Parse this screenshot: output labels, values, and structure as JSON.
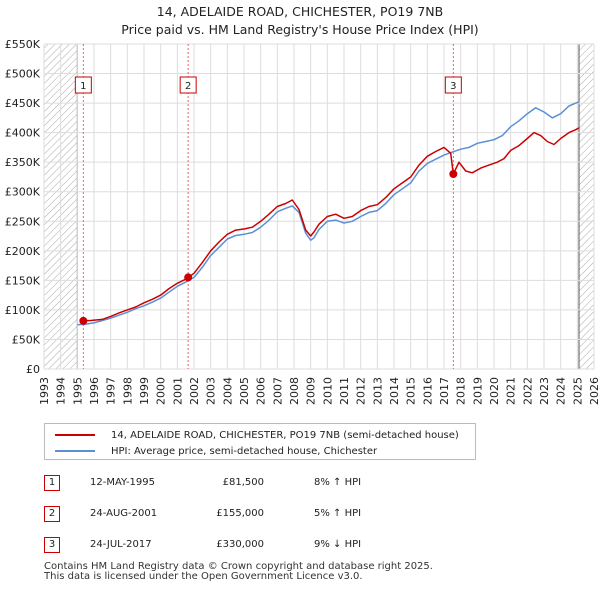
{
  "title": "14, ADELAIDE ROAD, CHICHESTER, PO19 7NB",
  "subtitle": "Price paid vs. HM Land Registry's House Price Index (HPI)",
  "chart_data": {
    "type": "line",
    "title": "14, ADELAIDE ROAD, CHICHESTER, PO19 7NB",
    "subtitle": "Price paid vs. HM Land Registry's House Price Index (HPI)",
    "xlabel": "",
    "ylabel": "",
    "xlim": [
      1993,
      2026
    ],
    "ylim": [
      0,
      550000
    ],
    "grid": true,
    "x_ticks": [
      "1993",
      "1994",
      "1995",
      "1996",
      "1997",
      "1998",
      "1999",
      "2000",
      "2001",
      "2002",
      "2003",
      "2004",
      "2005",
      "2006",
      "2007",
      "2008",
      "2009",
      "2010",
      "2011",
      "2012",
      "2013",
      "2014",
      "2015",
      "2016",
      "2017",
      "2018",
      "2019",
      "2020",
      "2021",
      "2022",
      "2023",
      "2024",
      "2025",
      "2026"
    ],
    "y_ticks": [
      {
        "value": 0,
        "label": "£0"
      },
      {
        "value": 50000,
        "label": "£50K"
      },
      {
        "value": 100000,
        "label": "£100K"
      },
      {
        "value": 150000,
        "label": "£150K"
      },
      {
        "value": 200000,
        "label": "£200K"
      },
      {
        "value": 250000,
        "label": "£250K"
      },
      {
        "value": 300000,
        "label": "£300K"
      },
      {
        "value": 350000,
        "label": "£350K"
      },
      {
        "value": 400000,
        "label": "£400K"
      },
      {
        "value": 450000,
        "label": "£450K"
      },
      {
        "value": 500000,
        "label": "£500K"
      },
      {
        "value": 550000,
        "label": "£550K"
      }
    ],
    "hatched_regions": [
      [
        1993,
        1995.0
      ],
      [
        2025.1,
        2026
      ]
    ],
    "series": [
      {
        "name": "14, ADELAIDE ROAD, CHICHESTER, PO19 7NB (semi-detached house)",
        "color": "#cc0000",
        "x": [
          1995.36,
          1995.8,
          1996.5,
          1997.0,
          1997.5,
          1998.0,
          1998.5,
          1999.0,
          1999.5,
          2000.0,
          2000.5,
          2001.0,
          2001.5,
          2001.65,
          2002.0,
          2002.5,
          2003.0,
          2003.5,
          2004.0,
          2004.5,
          2005.0,
          2005.5,
          2006.0,
          2006.5,
          2007.0,
          2007.5,
          2007.9,
          2008.3,
          2008.7,
          2009.0,
          2009.2,
          2009.5,
          2010.0,
          2010.5,
          2011.0,
          2011.5,
          2012.0,
          2012.5,
          2013.0,
          2013.5,
          2014.0,
          2014.5,
          2015.0,
          2015.5,
          2016.0,
          2016.5,
          2017.0,
          2017.4,
          2017.56,
          2017.9,
          2018.3,
          2018.7,
          2019.2,
          2019.7,
          2020.2,
          2020.6,
          2021.0,
          2021.5,
          2022.0,
          2022.4,
          2022.8,
          2023.2,
          2023.6,
          2024.0,
          2024.5,
          2024.9,
          2025.1
        ],
        "values": [
          81500,
          82000,
          84000,
          89000,
          95000,
          100000,
          105000,
          112000,
          118000,
          125000,
          136000,
          145000,
          152000,
          155000,
          162000,
          180000,
          200000,
          215000,
          228000,
          235000,
          237000,
          240000,
          250000,
          262000,
          275000,
          280000,
          286000,
          270000,
          235000,
          225000,
          232000,
          245000,
          258000,
          262000,
          255000,
          258000,
          268000,
          275000,
          278000,
          290000,
          305000,
          315000,
          325000,
          345000,
          360000,
          368000,
          375000,
          365000,
          330000,
          350000,
          335000,
          332000,
          340000,
          345000,
          350000,
          356000,
          370000,
          378000,
          390000,
          400000,
          395000,
          385000,
          380000,
          390000,
          400000,
          405000,
          408000
        ]
      },
      {
        "name": "HPI: Average price, semi-detached house, Chichester",
        "color": "#5b8fd6",
        "x": [
          1995.0,
          1995.5,
          1996.0,
          1996.5,
          1997.0,
          1997.5,
          1998.0,
          1998.5,
          1999.0,
          1999.5,
          2000.0,
          2000.5,
          2001.0,
          2001.5,
          2002.0,
          2002.5,
          2003.0,
          2003.5,
          2004.0,
          2004.5,
          2005.0,
          2005.5,
          2006.0,
          2006.5,
          2007.0,
          2007.5,
          2007.9,
          2008.3,
          2008.7,
          2009.0,
          2009.2,
          2009.5,
          2010.0,
          2010.5,
          2011.0,
          2011.5,
          2012.0,
          2012.5,
          2013.0,
          2013.5,
          2014.0,
          2014.5,
          2015.0,
          2015.5,
          2016.0,
          2016.5,
          2017.0,
          2017.5,
          2018.0,
          2018.5,
          2019.0,
          2019.5,
          2020.0,
          2020.5,
          2021.0,
          2021.5,
          2022.0,
          2022.5,
          2023.0,
          2023.5,
          2024.0,
          2024.5,
          2024.9,
          2025.1
        ],
        "values": [
          75000,
          76000,
          78000,
          82000,
          86000,
          91000,
          96000,
          102000,
          107000,
          113000,
          120000,
          130000,
          140000,
          147000,
          155000,
          172000,
          192000,
          206000,
          220000,
          226000,
          228000,
          231000,
          240000,
          252000,
          266000,
          272000,
          276000,
          265000,
          230000,
          218000,
          222000,
          236000,
          250000,
          252000,
          247000,
          250000,
          258000,
          265000,
          268000,
          280000,
          295000,
          305000,
          315000,
          335000,
          348000,
          355000,
          362000,
          367000,
          372000,
          375000,
          382000,
          385000,
          388000,
          395000,
          410000,
          420000,
          432000,
          442000,
          435000,
          425000,
          432000,
          445000,
          450000,
          452000
        ]
      }
    ],
    "sales": [
      {
        "label": "1",
        "x": 1995.36,
        "value": 81500,
        "date": "12-MAY-1995"
      },
      {
        "label": "2",
        "x": 2001.65,
        "value": 155000,
        "date": "24-AUG-2001"
      },
      {
        "label": "3",
        "x": 2017.56,
        "value": 330000,
        "date": "24-JUL-2017"
      }
    ]
  },
  "legend": {
    "items": [
      {
        "label": "14, ADELAIDE ROAD, CHICHESTER, PO19 7NB (semi-detached house)",
        "color": "#cc0000"
      },
      {
        "label": "HPI: Average price, semi-detached house, Chichester",
        "color": "#5b8fd6"
      }
    ]
  },
  "transactions": [
    {
      "num": "1",
      "date": "12-MAY-1995",
      "price": "£81,500",
      "hpi": "8% ↑ HPI"
    },
    {
      "num": "2",
      "date": "24-AUG-2001",
      "price": "£155,000",
      "hpi": "5% ↑ HPI"
    },
    {
      "num": "3",
      "date": "24-JUL-2017",
      "price": "£330,000",
      "hpi": "9% ↓ HPI"
    }
  ],
  "footer": {
    "line1": "Contains HM Land Registry data © Crown copyright and database right 2025.",
    "line2": "This data is licensed under the Open Government Licence v3.0."
  }
}
